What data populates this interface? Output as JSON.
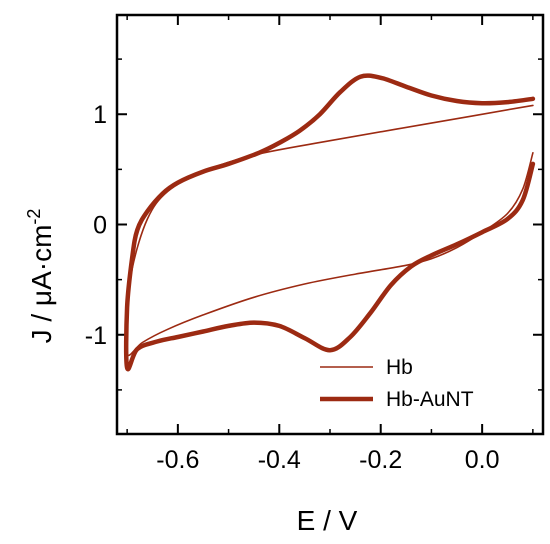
{
  "chart_data": {
    "type": "line",
    "title": "",
    "xlabel": "E / V",
    "ylabel_main": "J / μA·cm",
    "ylabel_sup": "-2",
    "xlim": [
      -0.72,
      0.12
    ],
    "ylim": [
      -1.9,
      1.9
    ],
    "xticks": [
      -0.6,
      -0.4,
      -0.2,
      0.0
    ],
    "xtick_labels": [
      "-0.6",
      "-0.4",
      "-0.2",
      "0.0"
    ],
    "yticks": [
      -1,
      0,
      1
    ],
    "ytick_labels": [
      "-1",
      "0",
      "1"
    ],
    "grid": false,
    "legend_position": "bottom-right",
    "series": [
      {
        "name": "Hb",
        "color": "#9c2a12",
        "line_weight": "thin",
        "x": [
          0.1,
          -0.1,
          -0.3,
          -0.45,
          -0.55,
          -0.62,
          -0.66,
          -0.69,
          -0.7,
          -0.7,
          -0.67,
          -0.62,
          -0.55,
          -0.45,
          -0.35,
          -0.25,
          -0.15,
          -0.1,
          -0.05,
          0.0,
          0.05,
          0.08,
          0.1
        ],
        "y": [
          1.08,
          0.92,
          0.76,
          0.63,
          0.48,
          0.3,
          0.05,
          -0.4,
          -0.85,
          -1.18,
          -1.07,
          -0.95,
          -0.82,
          -0.66,
          -0.54,
          -0.45,
          -0.37,
          -0.31,
          -0.21,
          -0.07,
          0.1,
          0.32,
          0.65
        ]
      },
      {
        "name": "Hb-AuNT",
        "color": "#9c2a12",
        "line_weight": "thick",
        "x": [
          0.1,
          0.05,
          0.0,
          -0.05,
          -0.1,
          -0.15,
          -0.2,
          -0.24,
          -0.28,
          -0.32,
          -0.36,
          -0.4,
          -0.44,
          -0.5,
          -0.55,
          -0.6,
          -0.63,
          -0.66,
          -0.68,
          -0.69,
          -0.7,
          -0.7,
          -0.68,
          -0.64,
          -0.6,
          -0.55,
          -0.5,
          -0.45,
          -0.4,
          -0.35,
          -0.3,
          -0.26,
          -0.22,
          -0.18,
          -0.14,
          -0.1,
          -0.05,
          0.0,
          0.05,
          0.08,
          0.1
        ],
        "y": [
          1.14,
          1.11,
          1.1,
          1.12,
          1.17,
          1.25,
          1.33,
          1.34,
          1.2,
          1.0,
          0.85,
          0.74,
          0.65,
          0.55,
          0.48,
          0.38,
          0.28,
          0.12,
          -0.05,
          -0.3,
          -0.75,
          -1.3,
          -1.13,
          -1.06,
          -1.02,
          -0.97,
          -0.92,
          -0.89,
          -0.92,
          -1.03,
          -1.14,
          -1.02,
          -0.8,
          -0.55,
          -0.38,
          -0.28,
          -0.18,
          -0.07,
          0.05,
          0.22,
          0.55
        ]
      }
    ]
  }
}
